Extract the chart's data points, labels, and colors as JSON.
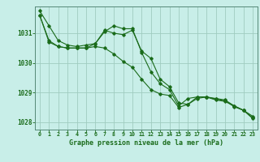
{
  "background_color": "#c8eee8",
  "grid_color": "#a0ccc0",
  "line_color": "#1a6b1a",
  "title": "Graphe pression niveau de la mer (hPa)",
  "xlabel_hours": [
    0,
    1,
    2,
    3,
    4,
    5,
    6,
    7,
    8,
    9,
    10,
    11,
    12,
    13,
    14,
    15,
    16,
    17,
    18,
    19,
    20,
    21,
    22,
    23
  ],
  "ylim": [
    1027.75,
    1031.9
  ],
  "yticks": [
    1028,
    1029,
    1030,
    1031
  ],
  "series1": [
    1031.75,
    1031.25,
    1030.75,
    1030.6,
    1030.55,
    1030.6,
    1030.65,
    1031.1,
    1031.0,
    1030.95,
    1031.1,
    1030.4,
    1030.15,
    1029.45,
    1029.2,
    1028.65,
    1028.6,
    1028.85,
    1028.85,
    1028.75,
    1028.7,
    1028.55,
    1028.4,
    1028.2
  ],
  "series2": [
    1031.6,
    1030.75,
    1030.55,
    1030.5,
    1030.5,
    1030.5,
    1030.65,
    1031.05,
    1031.25,
    1031.15,
    1031.15,
    1030.35,
    1029.7,
    1029.3,
    1029.1,
    1028.55,
    1028.8,
    1028.85,
    1028.85,
    1028.8,
    1028.75,
    1028.55,
    1028.4,
    1028.15
  ],
  "series3": [
    1031.6,
    1030.7,
    1030.55,
    1030.5,
    1030.5,
    1030.5,
    1030.55,
    1030.5,
    1030.3,
    1030.05,
    1029.85,
    1029.45,
    1029.1,
    1028.95,
    1028.9,
    1028.5,
    1028.6,
    1028.8,
    1028.85,
    1028.78,
    1028.72,
    1028.52,
    1028.4,
    1028.12
  ]
}
